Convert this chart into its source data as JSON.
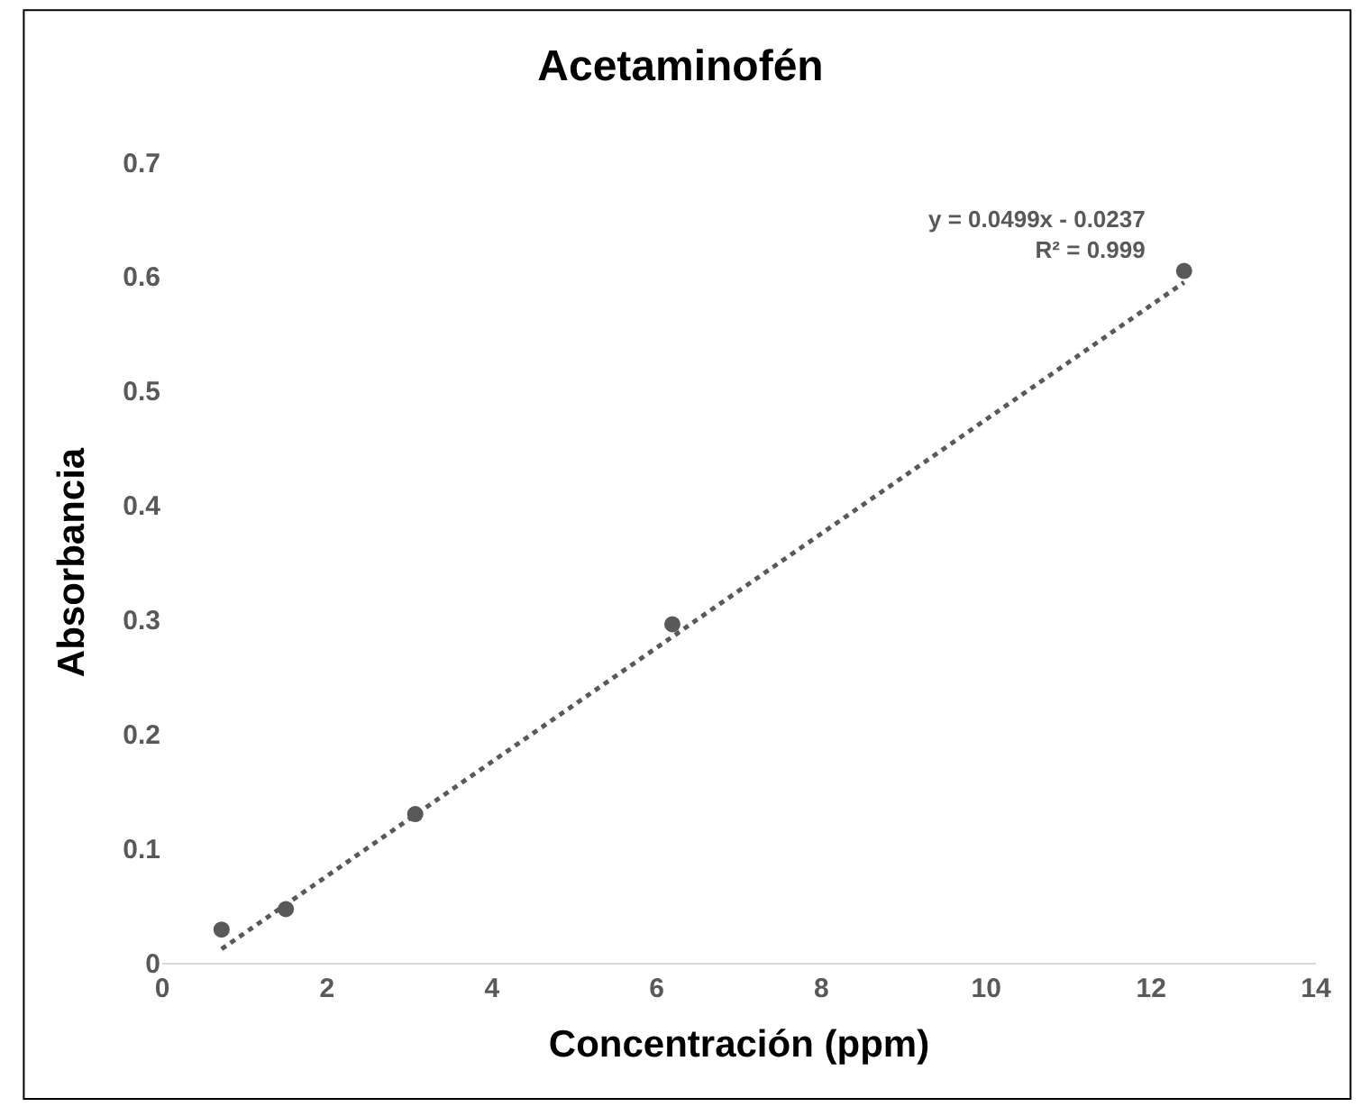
{
  "chart_data": {
    "type": "scatter",
    "title": "Acetaminofén",
    "xlabel": "Concentración (ppm)",
    "ylabel": "Absorbancia",
    "xlim": [
      0,
      14
    ],
    "xticks": [
      0,
      2,
      4,
      6,
      8,
      10,
      12,
      14
    ],
    "ylim": [
      0,
      0.7
    ],
    "yticks": [
      0,
      0.1,
      0.2,
      0.3,
      0.4,
      0.5,
      0.6,
      0.7
    ],
    "marker": "circle",
    "series": [
      {
        "color": "#595959",
        "x": [
          0.72,
          1.5,
          3.07,
          6.19,
          12.4
        ],
        "values": [
          0.029,
          0.047,
          0.13,
          0.296,
          0.605
        ]
      },
      {
        "type": "line",
        "color": "#595959",
        "line_style": "dotted",
        "marker": "none",
        "x": [
          0.72,
          12.4
        ],
        "values": [
          0.012,
          0.595
        ]
      }
    ],
    "annotations": [
      "y = 0.0499x - 0.0237\nR² = 0.999"
    ]
  }
}
